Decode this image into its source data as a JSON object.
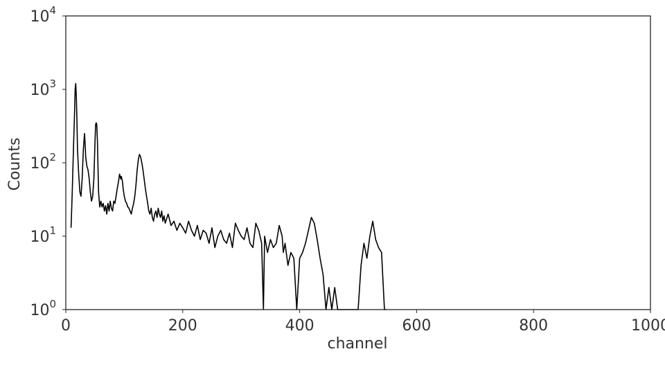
{
  "chart_data": {
    "type": "line",
    "title": "",
    "xlabel": "channel",
    "ylabel": "Counts",
    "xlim": [
      0,
      1000
    ],
    "ylim": [
      1,
      10000
    ],
    "yscale": "log",
    "grid": false,
    "line_color": "#000000",
    "x_ticks": [
      {
        "value": 0,
        "label": "0"
      },
      {
        "value": 200,
        "label": "200"
      },
      {
        "value": 400,
        "label": "400"
      },
      {
        "value": 600,
        "label": "600"
      },
      {
        "value": 800,
        "label": "800"
      },
      {
        "value": 1000,
        "label": "1000"
      }
    ],
    "y_ticks": [
      {
        "value": 1,
        "base": "10",
        "exp": "0"
      },
      {
        "value": 10,
        "base": "10",
        "exp": "1"
      },
      {
        "value": 100,
        "base": "10",
        "exp": "2"
      },
      {
        "value": 1000,
        "base": "10",
        "exp": "3"
      },
      {
        "value": 10000,
        "base": "10",
        "exp": "4"
      }
    ],
    "series": [
      {
        "x": [
          9,
          11,
          13,
          15,
          16,
          17,
          18,
          19,
          20,
          22,
          24,
          26,
          28,
          30,
          32,
          33,
          34,
          36,
          38,
          40,
          42,
          44,
          46,
          48,
          50,
          51,
          52,
          53,
          54,
          56,
          58,
          60,
          62,
          64,
          66,
          68,
          70,
          72,
          74,
          76,
          78,
          80,
          82,
          84,
          86,
          88,
          90,
          92,
          93,
          94,
          95,
          96,
          97,
          98,
          100,
          102,
          104,
          106,
          108,
          110,
          112,
          114,
          116,
          118,
          120,
          122,
          124,
          126,
          128,
          130,
          132,
          134,
          136,
          138,
          140,
          142,
          144,
          146,
          148,
          150,
          152,
          154,
          156,
          158,
          160,
          162,
          164,
          166,
          168,
          170,
          175,
          180,
          185,
          190,
          195,
          200,
          205,
          210,
          215,
          220,
          225,
          230,
          235,
          240,
          245,
          250,
          255,
          260,
          265,
          270,
          275,
          280,
          285,
          290,
          295,
          300,
          305,
          310,
          315,
          320,
          325,
          330,
          335,
          338,
          340,
          345,
          350,
          355,
          360,
          365,
          370,
          372,
          375,
          380,
          385,
          390,
          395,
          400,
          405,
          410,
          415,
          420,
          425,
          430,
          435,
          440,
          445,
          450,
          455,
          460,
          465,
          470,
          475,
          480,
          485,
          490,
          495,
          500,
          505,
          510,
          515,
          520,
          525,
          530,
          535,
          540,
          545,
          548
        ],
        "y": [
          13,
          40,
          150,
          500,
          1000,
          1200,
          800,
          400,
          150,
          70,
          40,
          35,
          60,
          150,
          250,
          180,
          120,
          90,
          80,
          60,
          40,
          30,
          35,
          60,
          200,
          330,
          350,
          330,
          200,
          40,
          25,
          30,
          25,
          28,
          22,
          26,
          20,
          28,
          22,
          30,
          24,
          22,
          30,
          28,
          35,
          45,
          55,
          70,
          65,
          60,
          65,
          60,
          55,
          45,
          35,
          30,
          28,
          25,
          24,
          22,
          20,
          24,
          28,
          35,
          50,
          80,
          110,
          130,
          120,
          100,
          80,
          60,
          45,
          35,
          28,
          22,
          20,
          24,
          18,
          16,
          20,
          22,
          18,
          24,
          20,
          18,
          22,
          16,
          19,
          15,
          20,
          14,
          16,
          12,
          15,
          13,
          11,
          16,
          12,
          10,
          14,
          9,
          12,
          11,
          8,
          13,
          7,
          10,
          12,
          9,
          8,
          11,
          7,
          15,
          12,
          10,
          9,
          13,
          8,
          7,
          15,
          12,
          8,
          1,
          10,
          6,
          9,
          7,
          8,
          14,
          10,
          6,
          8,
          4,
          6,
          5,
          1,
          5,
          6,
          8,
          12,
          18,
          15,
          9,
          5,
          3,
          1,
          2,
          1,
          2,
          1,
          1,
          1,
          1,
          1,
          1,
          1,
          1,
          4,
          8,
          5,
          10,
          16,
          9,
          7,
          6,
          1,
          1
        ]
      }
    ]
  }
}
